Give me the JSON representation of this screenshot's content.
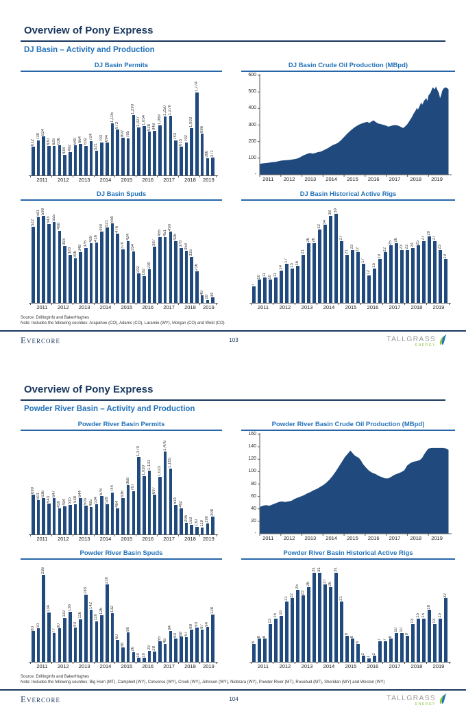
{
  "page": {
    "brand_left": "Evercore",
    "brand_right": "TALLGRASS",
    "brand_right_sub": "ENERGY",
    "source_line": "Source: Drillinginfo and BakerHughes"
  },
  "slides": [
    {
      "title": "Overview of Pony Express",
      "subtitle": "DJ Basin – Activity and Production",
      "note": "Note: Includes the following counties: Arapahoe (CO), Adams (CO), Laramie (WY), Morgan (CO) and Weld (CO)",
      "page_number": "103"
    },
    {
      "title": "Overview of Pony Express",
      "subtitle": "Powder River Basin – Activity and Production",
      "note": "Note: Includes the following counties: Big Horn (MT), Campbell (WY), Converse (WY), Crook (WY), Johnson (WY), Niobrara (WY), Powder River (MT), Rosebud (MT), Sheridan (WY) and Weston (WY)",
      "page_number": "104"
    }
  ],
  "colors": {
    "navy": "#17365D",
    "blue": "#2272B9",
    "bar_fill": "#204A7D",
    "brand_green": "#8DC63F",
    "brand_gray": "#9A9A9A"
  },
  "chart_data": [
    {
      "id": "dj-basin-permits",
      "type": "bar",
      "title": "DJ Basin Permits",
      "x_years": [
        "2011",
        "2012",
        "2013",
        "2014",
        "2015",
        "2016",
        "2017",
        "2018",
        "2019"
      ],
      "values": [
        612,
        739,
        824,
        630,
        626,
        636,
        438,
        492,
        640,
        664,
        632,
        724,
        521,
        703,
        694,
        1105,
        973,
        802,
        785,
        1290,
        1027,
        1054,
        928,
        948,
        1069,
        1250,
        1270,
        743,
        615,
        702,
        1003,
        1774,
        886,
        366,
        371
      ]
    },
    {
      "id": "dj-basin-crude-oil-production",
      "type": "area",
      "title": "DJ Basin Crude Oil Production (MBpd)",
      "x_years": [
        "2011",
        "2012",
        "2013",
        "2014",
        "2015",
        "2016",
        "2017",
        "2018",
        "2019"
      ],
      "ylim": [
        0,
        600
      ],
      "yticks": [
        100,
        200,
        300,
        400,
        500,
        600
      ],
      "zero_label": "-",
      "points": [
        [
          2011.0,
          65
        ],
        [
          2011.1,
          68
        ],
        [
          2011.25,
          70
        ],
        [
          2011.4,
          72
        ],
        [
          2011.5,
          74
        ],
        [
          2011.6,
          76
        ],
        [
          2011.75,
          78
        ],
        [
          2011.9,
          82
        ],
        [
          2012.0,
          85
        ],
        [
          2012.15,
          87
        ],
        [
          2012.3,
          88
        ],
        [
          2012.45,
          90
        ],
        [
          2012.6,
          93
        ],
        [
          2012.75,
          97
        ],
        [
          2012.9,
          104
        ],
        [
          2013.0,
          112
        ],
        [
          2013.1,
          118
        ],
        [
          2013.25,
          126
        ],
        [
          2013.4,
          131
        ],
        [
          2013.5,
          127
        ],
        [
          2013.6,
          130
        ],
        [
          2013.75,
          136
        ],
        [
          2013.9,
          140
        ],
        [
          2014.0,
          146
        ],
        [
          2014.15,
          155
        ],
        [
          2014.3,
          166
        ],
        [
          2014.45,
          178
        ],
        [
          2014.55,
          183
        ],
        [
          2014.7,
          192
        ],
        [
          2014.85,
          208
        ],
        [
          2015.0,
          228
        ],
        [
          2015.15,
          248
        ],
        [
          2015.3,
          266
        ],
        [
          2015.45,
          282
        ],
        [
          2015.6,
          295
        ],
        [
          2015.75,
          305
        ],
        [
          2015.9,
          312
        ],
        [
          2016.0,
          316
        ],
        [
          2016.1,
          320
        ],
        [
          2016.2,
          312
        ],
        [
          2016.3,
          322
        ],
        [
          2016.4,
          328
        ],
        [
          2016.5,
          318
        ],
        [
          2016.6,
          310
        ],
        [
          2016.75,
          305
        ],
        [
          2016.9,
          300
        ],
        [
          2017.0,
          296
        ],
        [
          2017.1,
          290
        ],
        [
          2017.2,
          294
        ],
        [
          2017.3,
          298
        ],
        [
          2017.45,
          300
        ],
        [
          2017.6,
          295
        ],
        [
          2017.7,
          288
        ],
        [
          2017.8,
          282
        ],
        [
          2017.9,
          292
        ],
        [
          2018.0,
          305
        ],
        [
          2018.1,
          325
        ],
        [
          2018.2,
          345
        ],
        [
          2018.3,
          370
        ],
        [
          2018.4,
          390
        ],
        [
          2018.45,
          405
        ],
        [
          2018.5,
          392
        ],
        [
          2018.6,
          420
        ],
        [
          2018.65,
          438
        ],
        [
          2018.7,
          422
        ],
        [
          2018.8,
          448
        ],
        [
          2018.9,
          462
        ],
        [
          2018.95,
          445
        ],
        [
          2019.0,
          478
        ],
        [
          2019.1,
          495
        ],
        [
          2019.15,
          512
        ],
        [
          2019.2,
          528
        ],
        [
          2019.3,
          515
        ],
        [
          2019.35,
          533
        ],
        [
          2019.45,
          505
        ],
        [
          2019.5,
          492
        ],
        [
          2019.55,
          462
        ],
        [
          2019.6,
          480
        ],
        [
          2019.65,
          505
        ],
        [
          2019.7,
          518
        ],
        [
          2019.8,
          528
        ],
        [
          2019.9,
          522
        ],
        [
          2019.95,
          515
        ]
      ]
    },
    {
      "id": "dj-basin-spuds",
      "type": "bar",
      "title": "DJ Basin Spuds",
      "x_years": [
        "2011",
        "2012",
        "2013",
        "2014",
        "2015",
        "2016",
        "2017",
        "2018",
        "2019"
      ],
      "values": [
        522,
        591,
        598,
        543,
        555,
        498,
        393,
        328,
        306,
        348,
        376,
        409,
        416,
        490,
        521,
        550,
        476,
        370,
        424,
        354,
        202,
        182,
        230,
        387,
        455,
        451,
        490,
        426,
        378,
        359,
        316,
        216,
        49,
        18,
        34
      ]
    },
    {
      "id": "dj-basin-historical-active-rigs",
      "type": "bar",
      "title": "DJ Basin Historical Active Rigs",
      "x_years": [
        "2011",
        "2012",
        "2013",
        "2014",
        "2015",
        "2016",
        "2017",
        "2018",
        "2019"
      ],
      "values": [
        7,
        10,
        11,
        10,
        11,
        14,
        17,
        15,
        16,
        21,
        26,
        26,
        32,
        34,
        38,
        39,
        27,
        21,
        23,
        22,
        17,
        12,
        15,
        19,
        22,
        25,
        26,
        23,
        23,
        24,
        25,
        27,
        29,
        27,
        23,
        19
      ]
    },
    {
      "id": "powder-river-basin-permits",
      "type": "bar",
      "title": "Powder River Basin Permits",
      "x_years": [
        "2011",
        "2012",
        "2013",
        "2014",
        "2015",
        "2016",
        "2017",
        "2018",
        "2019"
      ],
      "values": [
        699,
        601,
        636,
        543,
        647,
        459,
        494,
        515,
        538,
        644,
        503,
        485,
        534,
        678,
        528,
        744,
        464,
        636,
        868,
        767,
        1370,
        1030,
        1131,
        697,
        1023,
        1476,
        1165,
        514,
        462,
        206,
        163,
        130,
        119,
        190,
        308
      ]
    },
    {
      "id": "powder-river-basin-crude-oil-production",
      "type": "area",
      "title": "Powder River Basin Crude Oil Production (MBpd)",
      "x_years": [
        "2011",
        "2012",
        "2013",
        "2014",
        "2015",
        "2016",
        "2017",
        "2018",
        "2019"
      ],
      "ylim": [
        0,
        160
      ],
      "yticks": [
        20,
        40,
        60,
        80,
        100,
        120,
        140,
        160
      ],
      "zero_label": "-",
      "points": [
        [
          2011.0,
          43
        ],
        [
          2011.15,
          45
        ],
        [
          2011.3,
          46
        ],
        [
          2011.45,
          45
        ],
        [
          2011.6,
          47
        ],
        [
          2011.75,
          49
        ],
        [
          2011.9,
          51
        ],
        [
          2012.05,
          52
        ],
        [
          2012.2,
          51
        ],
        [
          2012.35,
          52
        ],
        [
          2012.5,
          53
        ],
        [
          2012.65,
          56
        ],
        [
          2012.8,
          58
        ],
        [
          2012.95,
          60
        ],
        [
          2013.1,
          62
        ],
        [
          2013.25,
          65
        ],
        [
          2013.4,
          67
        ],
        [
          2013.55,
          70
        ],
        [
          2013.7,
          72
        ],
        [
          2013.85,
          75
        ],
        [
          2014.0,
          78
        ],
        [
          2014.15,
          82
        ],
        [
          2014.3,
          87
        ],
        [
          2014.45,
          93
        ],
        [
          2014.6,
          100
        ],
        [
          2014.75,
          108
        ],
        [
          2014.9,
          116
        ],
        [
          2015.05,
          124
        ],
        [
          2015.2,
          130
        ],
        [
          2015.3,
          134
        ],
        [
          2015.4,
          130
        ],
        [
          2015.5,
          126
        ],
        [
          2015.6,
          124
        ],
        [
          2015.7,
          122
        ],
        [
          2015.8,
          118
        ],
        [
          2015.9,
          112
        ],
        [
          2016.05,
          106
        ],
        [
          2016.2,
          101
        ],
        [
          2016.35,
          98
        ],
        [
          2016.5,
          96
        ],
        [
          2016.65,
          93
        ],
        [
          2016.8,
          91
        ],
        [
          2016.95,
          89
        ],
        [
          2017.1,
          89
        ],
        [
          2017.25,
          92
        ],
        [
          2017.4,
          95
        ],
        [
          2017.55,
          97
        ],
        [
          2017.7,
          99
        ],
        [
          2017.85,
          102
        ],
        [
          2018.0,
          110
        ],
        [
          2018.15,
          114
        ],
        [
          2018.3,
          116
        ],
        [
          2018.45,
          117
        ],
        [
          2018.6,
          119
        ],
        [
          2018.7,
          122
        ],
        [
          2018.8,
          128
        ],
        [
          2018.9,
          133
        ],
        [
          2019.0,
          137
        ],
        [
          2019.15,
          138
        ],
        [
          2019.3,
          138
        ],
        [
          2019.5,
          138
        ],
        [
          2019.7,
          138
        ],
        [
          2019.85,
          137
        ],
        [
          2019.95,
          135
        ]
      ]
    },
    {
      "id": "powder-river-basin-spuds",
      "type": "bar",
      "title": "Powder River Basin Spuds",
      "x_years": [
        "2011",
        "2012",
        "2013",
        "2014",
        "2015",
        "2016",
        "2017",
        "2018",
        "2019"
      ],
      "values": [
        83,
        91,
        236,
        134,
        77,
        90,
        119,
        136,
        93,
        116,
        183,
        142,
        110,
        126,
        210,
        132,
        60,
        38,
        80,
        26,
        10,
        10,
        29,
        28,
        55,
        48,
        84,
        63,
        68,
        67,
        88,
        93,
        87,
        94,
        128
      ]
    },
    {
      "id": "powder-river-basin-historical-active-rigs",
      "type": "bar",
      "title": "Powder River Basin Historical Active Rigs",
      "x_years": [
        "2011",
        "2012",
        "2013",
        "2014",
        "2015",
        "2016",
        "2017",
        "2018",
        "2019"
      ],
      "values": [
        6,
        8,
        8,
        13,
        15,
        16,
        21,
        22,
        25,
        23,
        26,
        31,
        31,
        27,
        26,
        31,
        21,
        9,
        8,
        6,
        2,
        1,
        2,
        7,
        7,
        8,
        10,
        10,
        9,
        13,
        15,
        15,
        18,
        13,
        15,
        22
      ]
    }
  ]
}
